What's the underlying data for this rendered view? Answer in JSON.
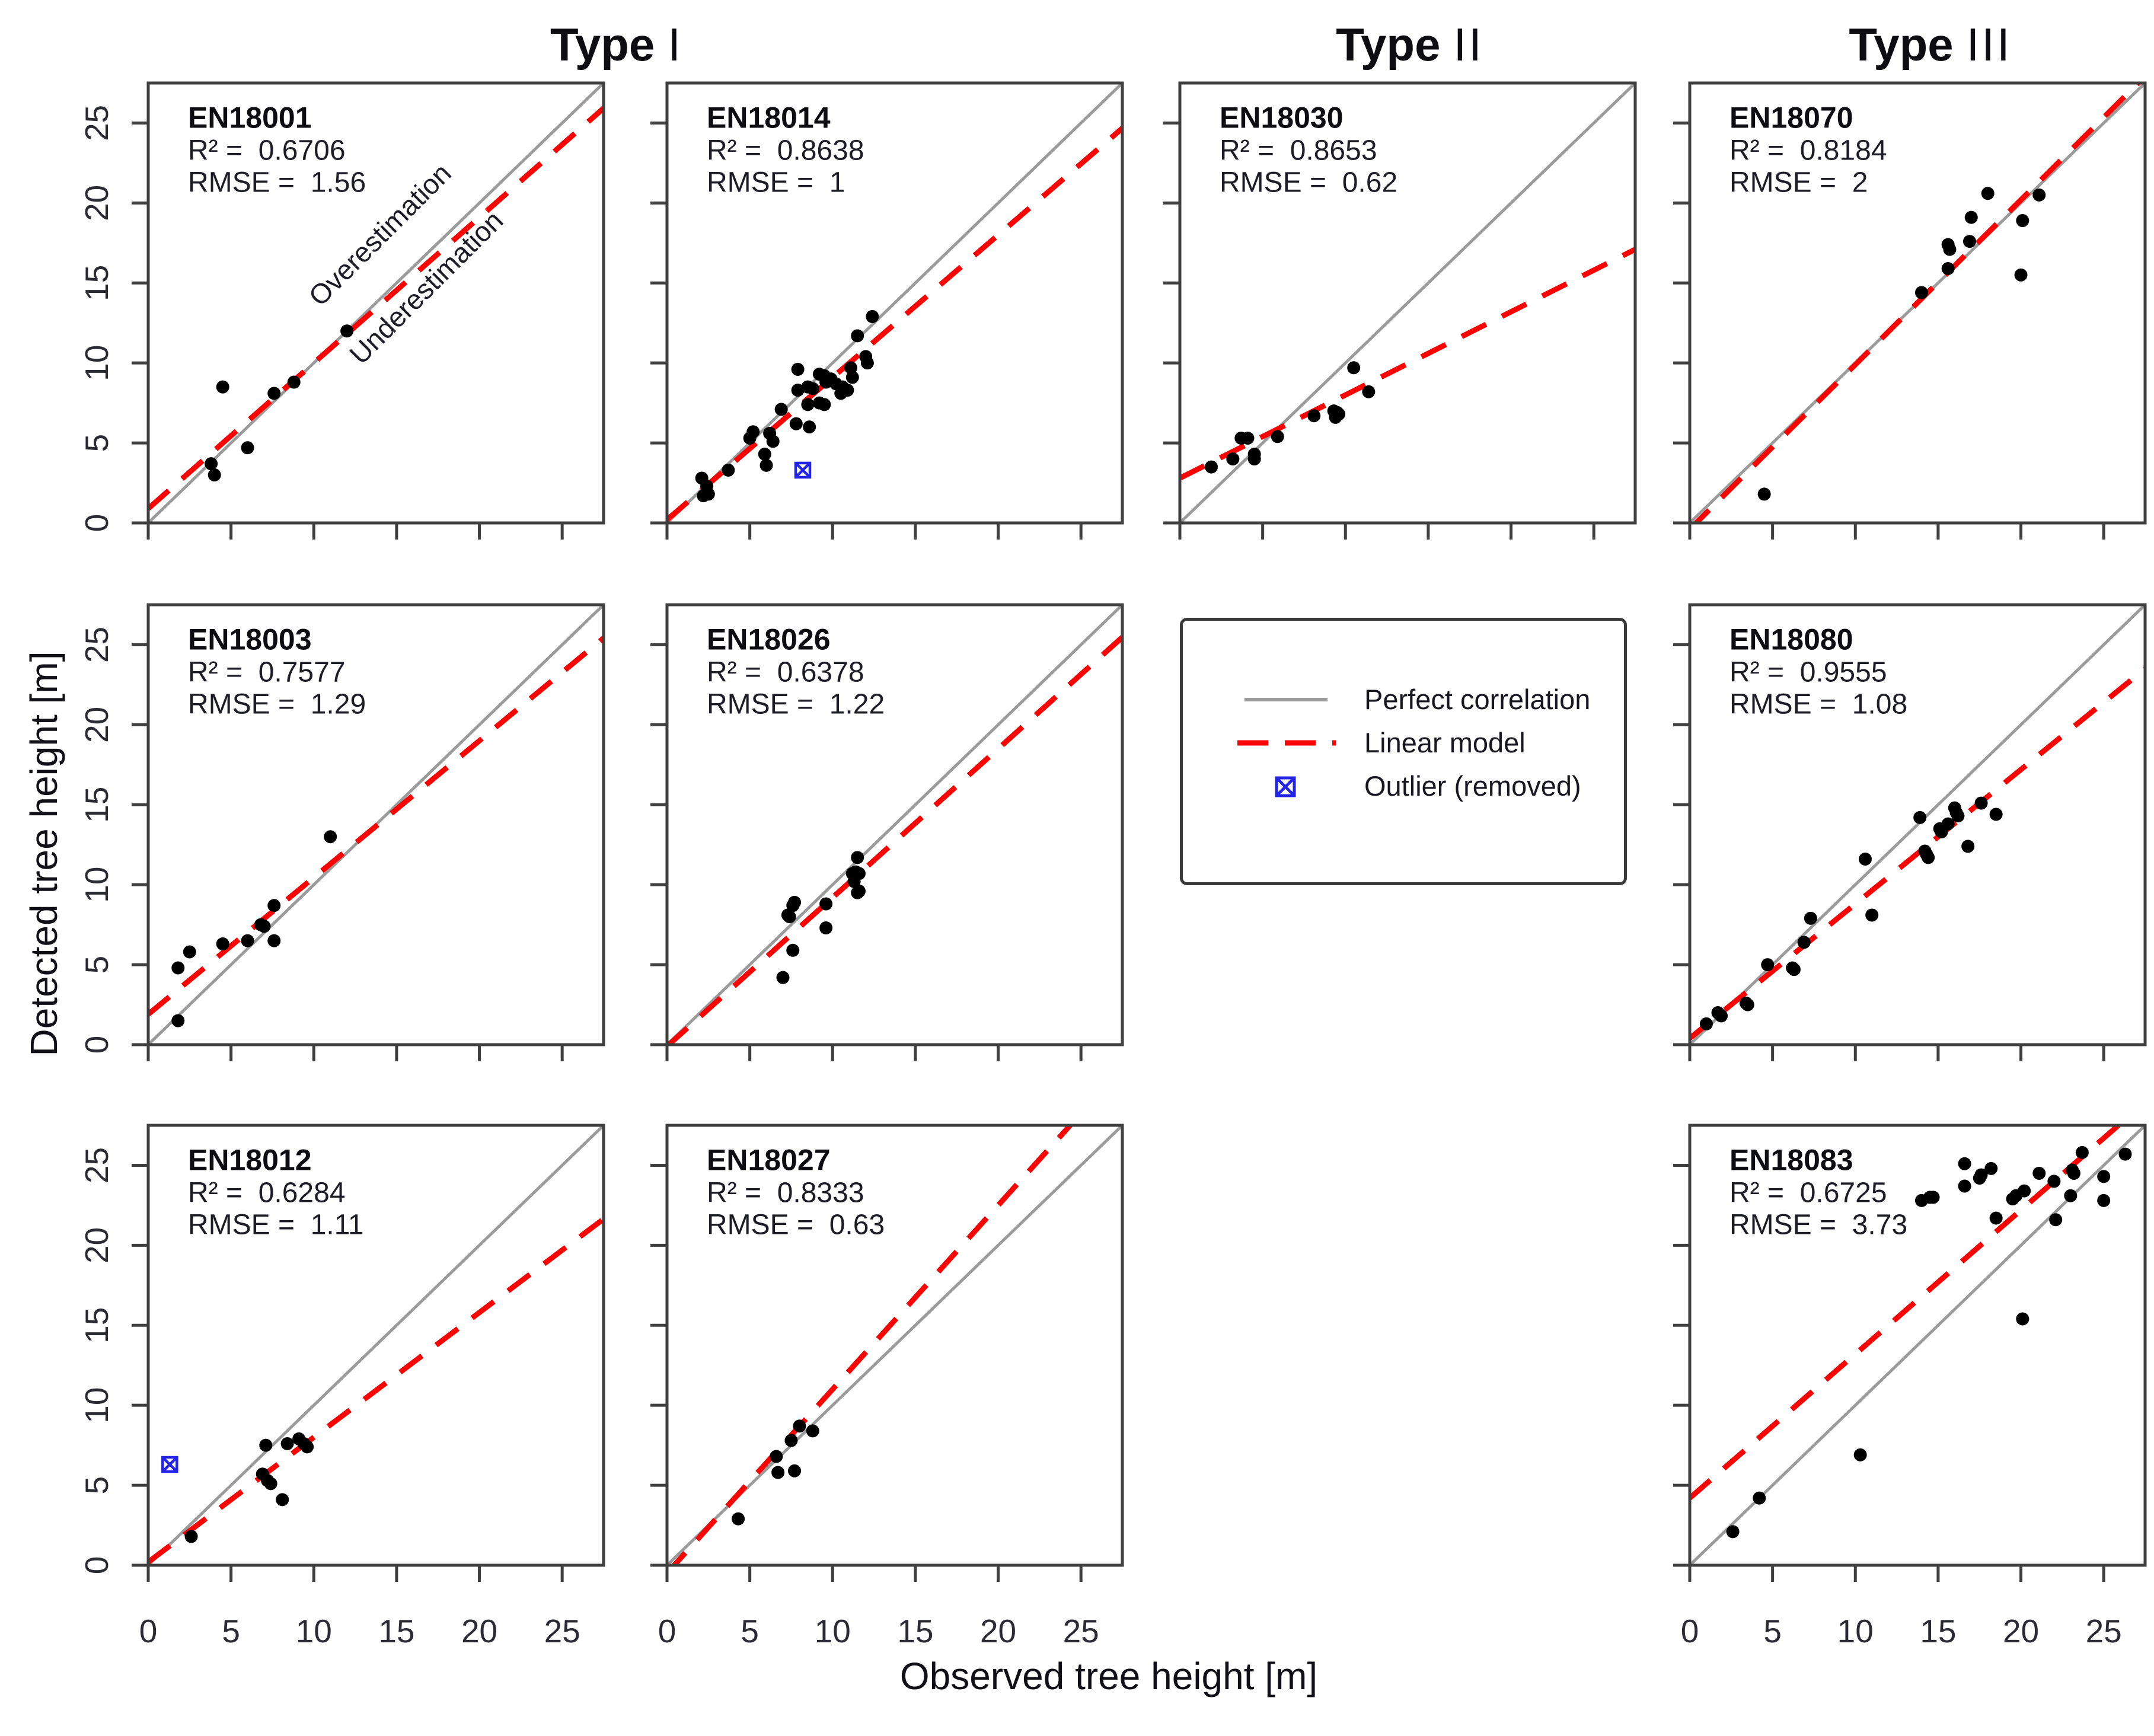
{
  "figure": {
    "column_headers": [
      {
        "bold": "Type",
        "numeral": "I"
      },
      {
        "bold": "Type",
        "numeral": "II"
      },
      {
        "bold": "Type",
        "numeral": "III"
      }
    ],
    "x_axis_title": "Observed tree height [m]",
    "y_axis_title": "Detected tree height [m]",
    "stats": {
      "r2_prefix": "R² =  ",
      "rmse_prefix": "RMSE =  "
    },
    "annotations": {
      "over": "Overestimation",
      "under": "Underestimation"
    },
    "legend": {
      "entries": [
        {
          "symbol": "gray-solid-line",
          "label": "Perfect correlation"
        },
        {
          "symbol": "red-dashed-line",
          "label": "Linear model"
        },
        {
          "symbol": "blue-boxed-x",
          "label": "Outlier (removed)"
        }
      ]
    },
    "colors": {
      "point": "#000000",
      "fit_line": "#fe0000",
      "identity_line": "#9b9b9b",
      "outlier": "#2424e8",
      "border": "#3f3f3f",
      "tick": "#3f3f3f",
      "text": "#1d1d26",
      "id_text": "#0d0d12",
      "tick_text": "#2b2b33"
    }
  },
  "chart_data": [
    {
      "type": "scatter",
      "id": "EN18001",
      "grid": [
        0,
        0
      ],
      "r2": "0.6706",
      "rmse": "1.56",
      "xlabel": "Observed tree height [m]",
      "ylabel": "Detected tree height [m]",
      "xlim": [
        0,
        27.5
      ],
      "ylim": [
        0,
        27.5
      ],
      "ticks": [
        0,
        5,
        10,
        15,
        20,
        25
      ],
      "show_y_labels": true,
      "show_x_labels": false,
      "show_annotations": true,
      "points": [
        [
          12,
          12
        ],
        [
          8.8,
          8.8
        ],
        [
          4.5,
          8.5
        ],
        [
          7.6,
          8.1
        ],
        [
          6,
          4.7
        ],
        [
          3.8,
          3.7
        ],
        [
          4,
          3
        ]
      ],
      "outliers": [],
      "fit": {
        "slope": 0.91,
        "intercept": 0.9
      }
    },
    {
      "type": "scatter",
      "id": "EN18014",
      "grid": [
        0,
        1
      ],
      "r2": "0.8638",
      "rmse": "1",
      "xlim": [
        0,
        27.5
      ],
      "ylim": [
        0,
        27.5
      ],
      "ticks": [
        0,
        5,
        10,
        15,
        20,
        25
      ],
      "show_y_labels": false,
      "show_x_labels": false,
      "show_annotations": false,
      "points": [
        [
          12.4,
          12.9
        ],
        [
          11.5,
          11.7
        ],
        [
          12,
          10.4
        ],
        [
          12.1,
          10
        ],
        [
          11.1,
          9.7
        ],
        [
          11.2,
          9.1
        ],
        [
          7.9,
          9.6
        ],
        [
          9.2,
          9.3
        ],
        [
          9.5,
          9.2
        ],
        [
          9.9,
          9
        ],
        [
          9.6,
          8.8
        ],
        [
          10.2,
          8.7
        ],
        [
          10.6,
          8.5
        ],
        [
          10.9,
          8.3
        ],
        [
          10.5,
          8.1
        ],
        [
          7.9,
          8.3
        ],
        [
          8.5,
          8.5
        ],
        [
          8.8,
          8.4
        ],
        [
          8.5,
          7.4
        ],
        [
          9.2,
          7.5
        ],
        [
          9.5,
          7.4
        ],
        [
          6.9,
          7.1
        ],
        [
          7.8,
          6.2
        ],
        [
          8.6,
          6
        ],
        [
          5.2,
          5.7
        ],
        [
          5,
          5.3
        ],
        [
          6.2,
          5.6
        ],
        [
          6.4,
          5.1
        ],
        [
          5.9,
          4.3
        ],
        [
          6,
          3.6
        ],
        [
          3.7,
          3.3
        ],
        [
          2.1,
          2.8
        ],
        [
          2.4,
          2.3
        ],
        [
          2.2,
          1.7
        ],
        [
          2.5,
          1.8
        ]
      ],
      "outliers": [
        [
          8.2,
          3.3
        ]
      ],
      "fit": {
        "slope": 0.89,
        "intercept": 0.2
      }
    },
    {
      "type": "scatter",
      "id": "EN18030",
      "grid": [
        0,
        2
      ],
      "r2": "0.8653",
      "rmse": "0.62",
      "xlim": [
        0,
        27.5
      ],
      "ylim": [
        0,
        27.5
      ],
      "ticks": [
        0,
        5,
        10,
        15,
        20,
        25
      ],
      "show_y_labels": false,
      "show_x_labels": false,
      "show_annotations": false,
      "points": [
        [
          10.5,
          9.7
        ],
        [
          11.4,
          8.2
        ],
        [
          9.3,
          7
        ],
        [
          9.5,
          6.9
        ],
        [
          9.6,
          6.8
        ],
        [
          9.4,
          6.6
        ],
        [
          8.1,
          6.7
        ],
        [
          5.9,
          5.4
        ],
        [
          3.7,
          5.3
        ],
        [
          4.1,
          5.3
        ],
        [
          4.5,
          4.3
        ],
        [
          4.5,
          4
        ],
        [
          3.2,
          4
        ],
        [
          1.9,
          3.5
        ]
      ],
      "outliers": [],
      "fit": {
        "slope": 0.52,
        "intercept": 2.8
      }
    },
    {
      "type": "scatter",
      "id": "EN18070",
      "grid": [
        0,
        3
      ],
      "r2": "0.8184",
      "rmse": "2",
      "xlim": [
        0,
        27.5
      ],
      "ylim": [
        0,
        27.5
      ],
      "ticks": [
        0,
        5,
        10,
        15,
        20,
        25
      ],
      "show_y_labels": false,
      "show_x_labels": false,
      "show_annotations": false,
      "points": [
        [
          18,
          20.6
        ],
        [
          21.1,
          20.5
        ],
        [
          17,
          19.1
        ],
        [
          20.1,
          18.9
        ],
        [
          15.6,
          17.4
        ],
        [
          15.7,
          17.1
        ],
        [
          16.9,
          17.6
        ],
        [
          15.6,
          15.9
        ],
        [
          20,
          15.5
        ],
        [
          14,
          14.4
        ],
        [
          4.5,
          1.8
        ]
      ],
      "outliers": [],
      "fit": {
        "slope": 1.03,
        "intercept": -0.4
      }
    },
    {
      "type": "scatter",
      "id": "EN18003",
      "grid": [
        1,
        0
      ],
      "r2": "0.7577",
      "rmse": "1.29",
      "xlim": [
        0,
        27.5
      ],
      "ylim": [
        0,
        27.5
      ],
      "ticks": [
        0,
        5,
        10,
        15,
        20,
        25
      ],
      "show_y_labels": true,
      "show_x_labels": false,
      "show_annotations": false,
      "points": [
        [
          11,
          13
        ],
        [
          7.6,
          8.7
        ],
        [
          6.8,
          7.5
        ],
        [
          7,
          7.4
        ],
        [
          7.6,
          6.5
        ],
        [
          6,
          6.5
        ],
        [
          4.5,
          6.3
        ],
        [
          2.5,
          5.8
        ],
        [
          1.8,
          4.8
        ],
        [
          1.8,
          1.5
        ]
      ],
      "outliers": [],
      "fit": {
        "slope": 0.855,
        "intercept": 1.9
      }
    },
    {
      "type": "scatter",
      "id": "EN18026",
      "grid": [
        1,
        1
      ],
      "r2": "0.6378",
      "rmse": "1.22",
      "xlim": [
        0,
        27.5
      ],
      "ylim": [
        0,
        27.5
      ],
      "ticks": [
        0,
        5,
        10,
        15,
        20,
        25
      ],
      "show_y_labels": false,
      "show_x_labels": false,
      "show_annotations": false,
      "points": [
        [
          11.5,
          11.7
        ],
        [
          11.2,
          10.7
        ],
        [
          11.4,
          10.8
        ],
        [
          11.6,
          10.7
        ],
        [
          11.3,
          10.2
        ],
        [
          11.5,
          9.5
        ],
        [
          11.6,
          9.6
        ],
        [
          9.6,
          8.8
        ],
        [
          7.6,
          8.7
        ],
        [
          7.7,
          8.9
        ],
        [
          7.3,
          8.1
        ],
        [
          7.4,
          8
        ],
        [
          9.6,
          7.3
        ],
        [
          7.6,
          5.9
        ],
        [
          7,
          4.2
        ]
      ],
      "outliers": [],
      "fit": {
        "slope": 0.93,
        "intercept": -0.1
      }
    },
    {
      "type": "scatter",
      "id": "EN18080",
      "grid": [
        1,
        3
      ],
      "r2": "0.9555",
      "rmse": "1.08",
      "xlim": [
        0,
        27.5
      ],
      "ylim": [
        0,
        27.5
      ],
      "ticks": [
        0,
        5,
        10,
        15,
        20,
        25
      ],
      "show_y_labels": false,
      "show_x_labels": false,
      "show_annotations": false,
      "points": [
        [
          13.9,
          14.2
        ],
        [
          16,
          14.8
        ],
        [
          16.1,
          14.5
        ],
        [
          16.2,
          14.3
        ],
        [
          17.6,
          15.1
        ],
        [
          18.5,
          14.4
        ],
        [
          15.1,
          13.5
        ],
        [
          15.2,
          13.3
        ],
        [
          15.6,
          13.8
        ],
        [
          16.8,
          12.4
        ],
        [
          14.2,
          12.1
        ],
        [
          14.3,
          11.9
        ],
        [
          14.4,
          11.7
        ],
        [
          10.6,
          11.6
        ],
        [
          11,
          8.1
        ],
        [
          7.3,
          7.9
        ],
        [
          6.9,
          6.4
        ],
        [
          4.7,
          5
        ],
        [
          6.2,
          4.8
        ],
        [
          6.3,
          4.7
        ],
        [
          3.4,
          2.6
        ],
        [
          3.5,
          2.5
        ],
        [
          1.8,
          1.9
        ],
        [
          1.9,
          1.8
        ],
        [
          1.7,
          2
        ],
        [
          1,
          1.3
        ]
      ],
      "outliers": [],
      "fit": {
        "slope": 0.84,
        "intercept": 0.4
      }
    },
    {
      "type": "scatter",
      "id": "EN18012",
      "grid": [
        2,
        0
      ],
      "r2": "0.6284",
      "rmse": "1.11",
      "xlim": [
        0,
        27.5
      ],
      "ylim": [
        0,
        27.5
      ],
      "ticks": [
        0,
        5,
        10,
        15,
        20,
        25
      ],
      "show_y_labels": true,
      "show_x_labels": true,
      "show_annotations": false,
      "points": [
        [
          7.1,
          7.5
        ],
        [
          8.4,
          7.6
        ],
        [
          9.1,
          7.9
        ],
        [
          9.4,
          7.6
        ],
        [
          9.6,
          7.4
        ],
        [
          6.9,
          5.7
        ],
        [
          7.2,
          5.3
        ],
        [
          7.4,
          5.1
        ],
        [
          8.1,
          4.1
        ],
        [
          2.6,
          1.8
        ]
      ],
      "outliers": [
        [
          1.3,
          6.3
        ]
      ],
      "fit": {
        "slope": 0.78,
        "intercept": 0.2
      }
    },
    {
      "type": "scatter",
      "id": "EN18027",
      "grid": [
        2,
        1
      ],
      "r2": "0.8333",
      "rmse": "0.63",
      "xlim": [
        0,
        27.5
      ],
      "ylim": [
        0,
        27.5
      ],
      "ticks": [
        0,
        5,
        10,
        15,
        20,
        25
      ],
      "show_y_labels": false,
      "show_x_labels": true,
      "show_annotations": false,
      "points": [
        [
          8,
          8.7
        ],
        [
          8.8,
          8.4
        ],
        [
          7.5,
          7.8
        ],
        [
          6.6,
          6.8
        ],
        [
          6.7,
          5.8
        ],
        [
          7.7,
          5.9
        ],
        [
          4.3,
          2.9
        ]
      ],
      "outliers": [],
      "fit": {
        "slope": 1.15,
        "intercept": -0.5
      }
    },
    {
      "type": "scatter",
      "id": "EN18083",
      "grid": [
        2,
        3
      ],
      "r2": "0.6725",
      "rmse": "3.73",
      "xlim": [
        0,
        27.5
      ],
      "ylim": [
        0,
        27.5
      ],
      "ticks": [
        0,
        5,
        10,
        15,
        20,
        25
      ],
      "show_y_labels": false,
      "show_x_labels": true,
      "show_annotations": false,
      "points": [
        [
          16.6,
          25.1
        ],
        [
          18.2,
          24.8
        ],
        [
          23.7,
          25.8
        ],
        [
          26.3,
          25.7
        ],
        [
          17.5,
          24.2
        ],
        [
          17.6,
          24.4
        ],
        [
          21.1,
          24.5
        ],
        [
          23.1,
          24.7
        ],
        [
          23.2,
          24.5
        ],
        [
          16.6,
          23.7
        ],
        [
          22,
          24
        ],
        [
          25,
          24.3
        ],
        [
          14,
          22.8
        ],
        [
          14.5,
          23
        ],
        [
          14.7,
          23
        ],
        [
          19.5,
          22.9
        ],
        [
          19.7,
          23.1
        ],
        [
          20.2,
          23.4
        ],
        [
          23,
          23.1
        ],
        [
          25,
          22.8
        ],
        [
          18.5,
          21.7
        ],
        [
          22.1,
          21.6
        ],
        [
          20.1,
          15.4
        ],
        [
          10.3,
          6.9
        ],
        [
          4.2,
          4.2
        ],
        [
          2.6,
          2.1
        ]
      ],
      "outliers": [],
      "fit": {
        "slope": 0.9,
        "intercept": 4.2
      }
    }
  ]
}
